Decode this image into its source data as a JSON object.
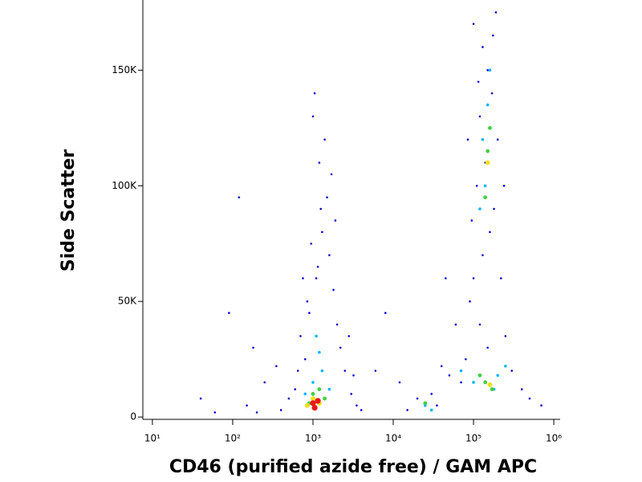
{
  "chart_data": {
    "type": "scatter",
    "xlabel": "CD46 (purified azide free) / GAM APC",
    "ylabel": "Side Scatter",
    "xscale": "log",
    "xlim": [
      7.6,
      1200000
    ],
    "ylim": [
      -1000,
      180000
    ],
    "xticks": [
      {
        "value": 10,
        "label": "10¹"
      },
      {
        "value": 100,
        "label": "10²"
      },
      {
        "value": 1000,
        "label": "10³"
      },
      {
        "value": 10000,
        "label": "10⁴"
      },
      {
        "value": 100000,
        "label": "10⁵"
      },
      {
        "value": 1000000,
        "label": "10⁶"
      }
    ],
    "yticks": [
      0,
      {
        "value": 50000,
        "label": "50K"
      },
      {
        "value": 100000,
        "label": "100K"
      },
      {
        "value": 150000,
        "label": "150K"
      }
    ],
    "series": [
      {
        "color": "#0000cc",
        "x": [
          400,
          600,
          800,
          900,
          1100,
          1300,
          1500,
          1200,
          1000,
          1600,
          700,
          2000,
          2500,
          3000,
          3500,
          500,
          250,
          150,
          180,
          90,
          120,
          1400,
          1800,
          950,
          1250,
          1700,
          850,
          2200,
          650,
          350,
          1050,
          1900,
          1150,
          750,
          2800,
          4000,
          60,
          40,
          200,
          3200,
          100000,
          130000,
          150000,
          170000,
          120000,
          200000,
          140000,
          110000,
          180000,
          160000,
          130000,
          100000,
          90000,
          120000,
          150000,
          80000,
          250000,
          300000,
          70000,
          60000,
          220000,
          190000,
          240000,
          95000,
          175000,
          115000,
          400000,
          500000,
          50000,
          40000,
          30000,
          15000,
          20000,
          35000,
          700000,
          12000,
          8000,
          6000,
          45000,
          85000
        ],
        "values": [
          3000,
          12000,
          25000,
          45000,
          60000,
          80000,
          95000,
          110000,
          130000,
          70000,
          35000,
          40000,
          20000,
          10000,
          5000,
          8000,
          15000,
          5000,
          30000,
          45000,
          95000,
          120000,
          55000,
          75000,
          90000,
          105000,
          50000,
          30000,
          20000,
          22000,
          140000,
          85000,
          65000,
          60000,
          35000,
          3000,
          2000,
          8000,
          2000,
          18000,
          170000,
          160000,
          150000,
          140000,
          130000,
          120000,
          110000,
          100000,
          90000,
          80000,
          70000,
          60000,
          50000,
          40000,
          30000,
          25000,
          35000,
          20000,
          15000,
          40000,
          60000,
          175000,
          100000,
          85000,
          165000,
          145000,
          12000,
          8000,
          18000,
          22000,
          10000,
          3000,
          8000,
          5000,
          5000,
          15000,
          45000,
          20000,
          60000,
          120000
        ]
      },
      {
        "color": "#00b4ff",
        "x": [
          1000,
          1300,
          800,
          1600,
          1100,
          1200,
          130000,
          150000,
          140000,
          160000,
          120000,
          100000,
          200000,
          180000,
          25000,
          30000,
          70000,
          250000
        ],
        "values": [
          15000,
          20000,
          10000,
          12000,
          35000,
          28000,
          120000,
          135000,
          100000,
          150000,
          90000,
          15000,
          18000,
          12000,
          5000,
          3000,
          20000,
          22000
        ]
      },
      {
        "color": "#40d040",
        "x": [
          1000,
          1200,
          900,
          1400,
          150000,
          160000,
          140000,
          140000,
          170000,
          120000,
          25000
        ],
        "values": [
          10000,
          12000,
          6000,
          8000,
          115000,
          125000,
          95000,
          15000,
          12000,
          18000,
          6000
        ]
      },
      {
        "color": "#f0e020",
        "x": [
          1000,
          1200,
          850,
          160000,
          150000
        ],
        "values": [
          8000,
          6000,
          5000,
          14000,
          110000
        ]
      },
      {
        "color": "#e81818",
        "x": [
          1000,
          1150,
          1050
        ],
        "values": [
          6000,
          7000,
          4000
        ]
      }
    ]
  }
}
